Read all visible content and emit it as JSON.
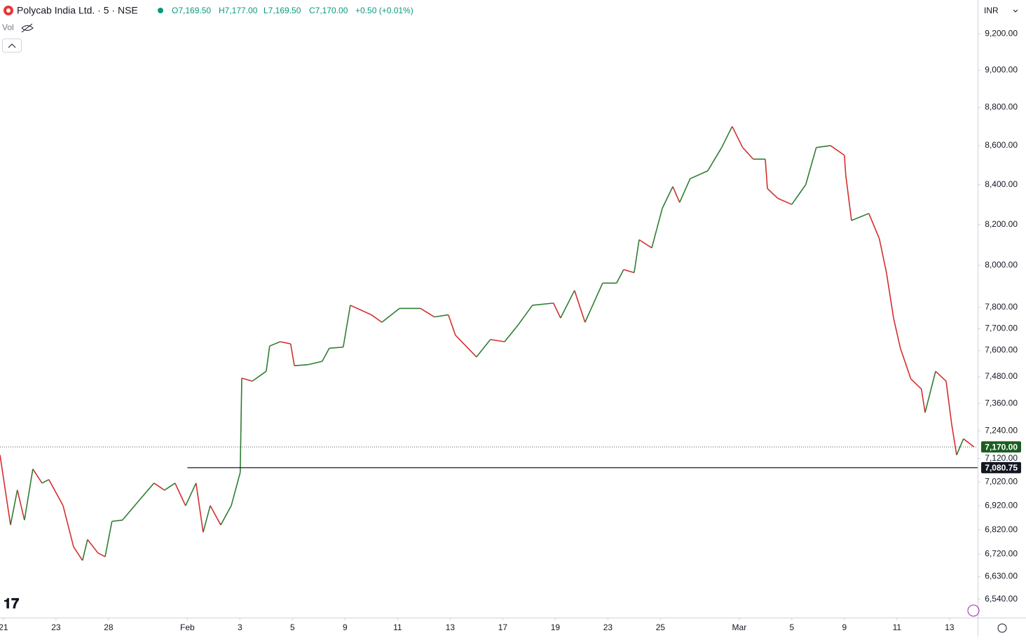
{
  "header": {
    "symbol": "Polycab India Ltd. · 5 · NSE",
    "open": "O7,169.50",
    "high": "H7,177.00",
    "low": "L7,169.50",
    "close": "C7,170.00",
    "change": "+0.50 (+0.01%)",
    "volume": "Vol",
    "currency": "INR"
  },
  "chart_data": {
    "type": "line",
    "log_scale": true,
    "up_color": "#2e7d32",
    "down_color": "#d32f2f",
    "x": [
      -0.13,
      0.27,
      0.53,
      0.8,
      1.12,
      1.47,
      1.73,
      2.27,
      2.67,
      3.01,
      3.2,
      3.6,
      3.87,
      4.13,
      4.53,
      5.07,
      5.73,
      6.13,
      6.53,
      6.93,
      7.33,
      7.6,
      7.87,
      8.27,
      8.67,
      9.01,
      9.07,
      9.47,
      10,
      10.13,
      10.53,
      10.93,
      11.07,
      11.6,
      12.13,
      12.4,
      12.93,
      13.2,
      14,
      14.4,
      15.07,
      15.87,
      16.4,
      16.93,
      17.2,
      18,
      18.53,
      19.07,
      19.6,
      20.13,
      20.93,
      21.2,
      21.73,
      22.13,
      22.8,
      23.33,
      23.6,
      24,
      24.19,
      24.67,
      25.07,
      25.47,
      25.73,
      26.13,
      26.8,
      27.33,
      27.73,
      28.13,
      28.53,
      28.99,
      29.07,
      29.47,
      30,
      30.53,
      30.93,
      31.47,
      32,
      32.05,
      32.27,
      32.93,
      33.33,
      33.6,
      33.87,
      34.13,
      34.53,
      34.93,
      35.07,
      35.47,
      35.87,
      36.08,
      36.27,
      36.53,
      36.93
    ],
    "series": [
      {
        "name": "Polycab India Ltd.",
        "values": [
          7135,
          6840,
          6986,
          6860,
          7075,
          7015,
          7030,
          6920,
          6750,
          6695,
          6780,
          6725,
          6710,
          6855,
          6860,
          6930,
          7015,
          6985,
          7015,
          6920,
          7015,
          6810,
          6920,
          6840,
          6920,
          7060,
          7474,
          7460,
          7505,
          7620,
          7640,
          7630,
          7530,
          7535,
          7550,
          7610,
          7615,
          7810,
          7765,
          7730,
          7795,
          7795,
          7755,
          7765,
          7670,
          7570,
          7650,
          7640,
          7720,
          7810,
          7820,
          7750,
          7880,
          7730,
          7915,
          7915,
          7980,
          7965,
          8125,
          8085,
          8280,
          8390,
          8310,
          8430,
          8470,
          8590,
          8700,
          8590,
          8530,
          8530,
          8380,
          8330,
          8300,
          8400,
          8590,
          8600,
          8550,
          8450,
          8220,
          8255,
          8130,
          7965,
          7750,
          7610,
          7470,
          7425,
          7320,
          7505,
          7460,
          7270,
          7135,
          7205,
          7170
        ]
      }
    ],
    "xlim": [
      -0.13,
      37.07
    ],
    "xticks": [
      {
        "value": 0,
        "label": "21"
      },
      {
        "value": 2,
        "label": "23"
      },
      {
        "value": 4,
        "label": "28"
      },
      {
        "value": 7,
        "label": "Feb"
      },
      {
        "value": 9,
        "label": "3"
      },
      {
        "value": 11,
        "label": "5"
      },
      {
        "value": 13,
        "label": "9"
      },
      {
        "value": 15,
        "label": "11"
      },
      {
        "value": 17,
        "label": "13"
      },
      {
        "value": 19,
        "label": "17"
      },
      {
        "value": 21,
        "label": "19"
      },
      {
        "value": 23,
        "label": "23"
      },
      {
        "value": 25,
        "label": "25"
      },
      {
        "value": 28,
        "label": "Mar"
      },
      {
        "value": 30,
        "label": "5"
      },
      {
        "value": 32,
        "label": "9"
      },
      {
        "value": 34,
        "label": "11"
      },
      {
        "value": 36,
        "label": "13"
      }
    ],
    "ylim": [
      6468,
      9390
    ],
    "yticks": [
      {
        "value": 9200,
        "label": "9,200.00"
      },
      {
        "value": 9000,
        "label": "9,000.00"
      },
      {
        "value": 8800,
        "label": "8,800.00"
      },
      {
        "value": 8600,
        "label": "8,600.00"
      },
      {
        "value": 8400,
        "label": "8,400.00"
      },
      {
        "value": 8200,
        "label": "8,200.00"
      },
      {
        "value": 8000,
        "label": "8,000.00"
      },
      {
        "value": 7800,
        "label": "7,800.00"
      },
      {
        "value": 7700,
        "label": "7,700.00"
      },
      {
        "value": 7600,
        "label": "7,600.00"
      },
      {
        "value": 7480,
        "label": "7,480.00"
      },
      {
        "value": 7360,
        "label": "7,360.00"
      },
      {
        "value": 7240,
        "label": "7,240.00"
      },
      {
        "value": 7120,
        "label": "7,120.00"
      },
      {
        "value": 7020,
        "label": "7,020.00"
      },
      {
        "value": 6920,
        "label": "6,920.00"
      },
      {
        "value": 6820,
        "label": "6,820.00"
      },
      {
        "value": 6720,
        "label": "6,720.00"
      },
      {
        "value": 6630,
        "label": "6,630.00"
      },
      {
        "value": 6540,
        "label": "6,540.00"
      }
    ],
    "last_price": {
      "value": 7170,
      "label": "7,170.00",
      "color": "#1b5e20"
    },
    "hline": {
      "value": 7080.75,
      "label": "7,080.75",
      "start_x": 7
    }
  }
}
